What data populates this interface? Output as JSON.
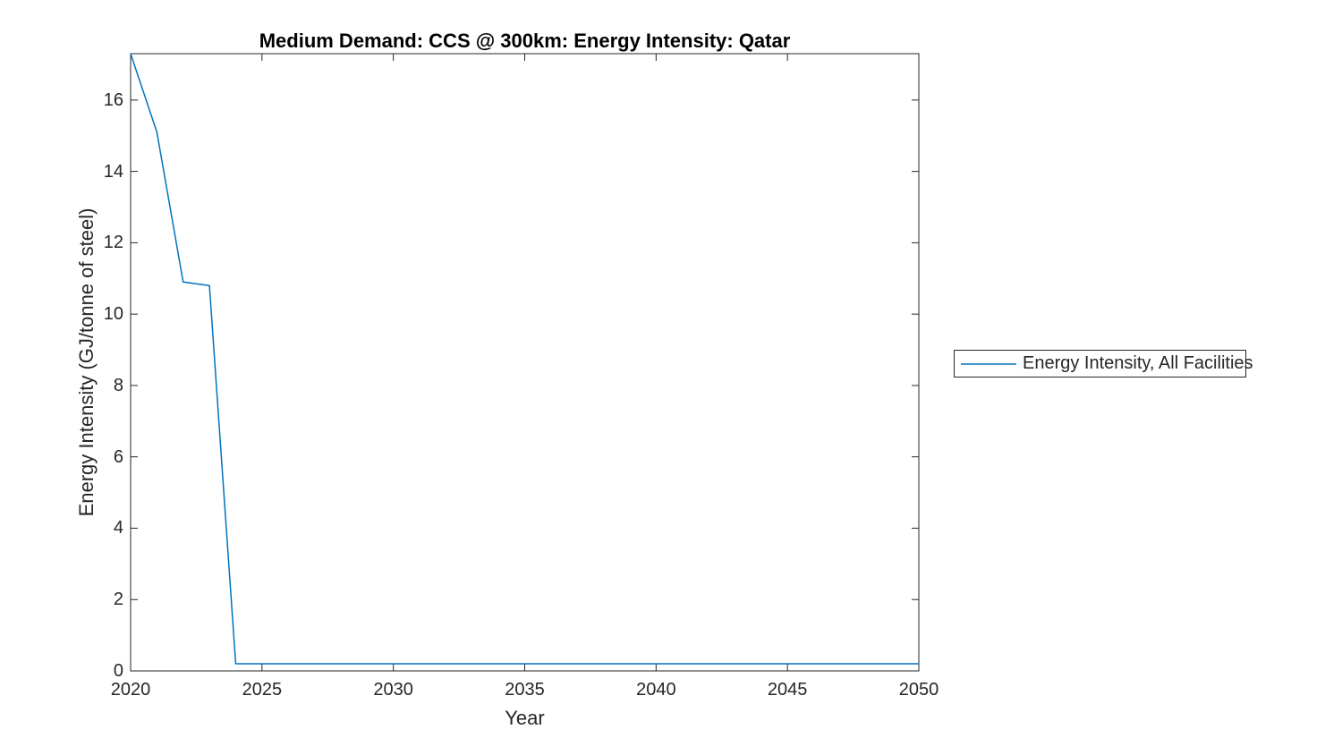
{
  "chart_data": {
    "type": "line",
    "title": "Medium Demand: CCS @ 300km: Energy Intensity: Qatar",
    "xlabel": "Year",
    "ylabel": "Energy Intensity (GJ/tonne of steel)",
    "xlim": [
      2020,
      2050
    ],
    "ylim": [
      0,
      17.3
    ],
    "x_ticks": [
      2020,
      2025,
      2030,
      2035,
      2040,
      2045,
      2050
    ],
    "y_ticks": [
      0,
      2,
      4,
      6,
      8,
      10,
      12,
      14,
      16
    ],
    "grid": false,
    "legend_position": "outside-right",
    "axis_color": "#262626",
    "background_color": "#ffffff",
    "series": [
      {
        "name": "Energy Intensity, All Facilities",
        "color": "#0072BD",
        "x": [
          2020,
          2021,
          2022,
          2023,
          2024,
          2025,
          2030,
          2035,
          2040,
          2045,
          2050
        ],
        "y": [
          17.3,
          15.1,
          10.9,
          10.8,
          0.2,
          0.2,
          0.2,
          0.2,
          0.2,
          0.2,
          0.2
        ]
      }
    ]
  }
}
